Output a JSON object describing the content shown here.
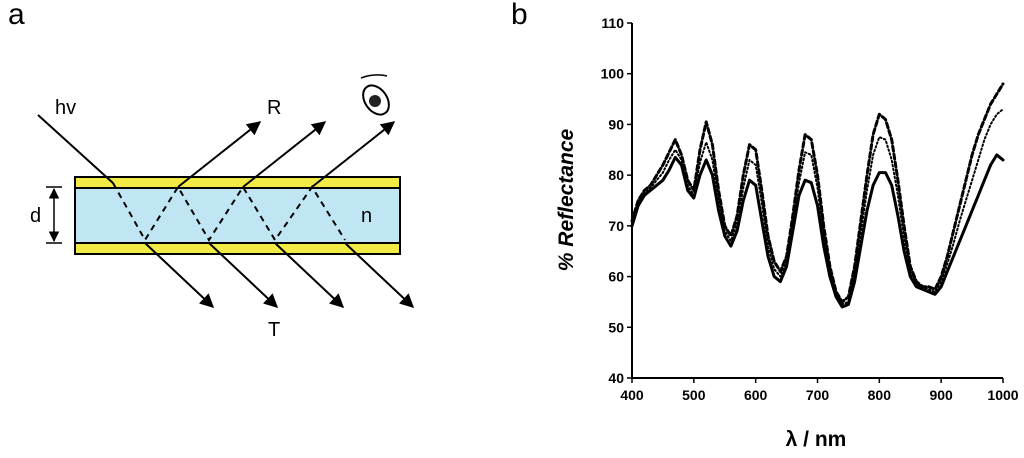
{
  "panels": {
    "a": {
      "label": "a",
      "texts": {
        "incident": "hv",
        "reflected": "R",
        "transmitted": "T",
        "thickness": "d",
        "index": "n"
      },
      "colors": {
        "layer": "#f2ea45",
        "core": "#bfe6f2"
      }
    },
    "b": {
      "label": "b"
    }
  },
  "chart_data": {
    "type": "line",
    "xlabel": "λ / nm",
    "ylabel": "% Reflectance",
    "xlim": [
      400,
      1000
    ],
    "ylim": [
      40,
      110
    ],
    "xticks": [
      400,
      500,
      600,
      700,
      800,
      900,
      1000
    ],
    "yticks": [
      40,
      50,
      60,
      70,
      80,
      90,
      100,
      110
    ],
    "grid": false,
    "series": [
      {
        "style": "solid",
        "x": [
          400,
          410,
          420,
          430,
          440,
          450,
          460,
          470,
          480,
          490,
          500,
          510,
          520,
          530,
          540,
          550,
          560,
          570,
          580,
          590,
          600,
          610,
          620,
          630,
          640,
          650,
          660,
          670,
          680,
          690,
          700,
          710,
          720,
          730,
          740,
          750,
          760,
          770,
          780,
          790,
          800,
          810,
          820,
          830,
          840,
          850,
          860,
          870,
          880,
          890,
          900,
          910,
          920,
          930,
          940,
          950,
          960,
          970,
          980,
          990,
          1000
        ],
        "y": [
          70,
          74,
          76,
          77,
          78,
          79,
          81,
          83.5,
          82,
          77,
          75.5,
          80,
          83,
          80,
          73,
          68,
          66,
          69,
          75,
          79,
          78,
          71,
          64,
          60,
          59,
          62,
          69,
          76,
          79,
          78.5,
          74,
          66,
          60,
          56,
          54,
          54.5,
          59,
          66,
          73,
          78,
          80.5,
          80.5,
          78,
          72,
          65,
          60,
          58,
          57.5,
          57,
          56.5,
          58,
          61,
          64,
          67,
          70,
          73,
          76,
          79,
          82,
          84,
          83
        ]
      },
      {
        "style": "dashed",
        "x": [
          400,
          410,
          420,
          430,
          440,
          450,
          460,
          470,
          480,
          490,
          500,
          510,
          520,
          530,
          540,
          550,
          560,
          570,
          580,
          590,
          600,
          610,
          620,
          630,
          640,
          650,
          660,
          670,
          680,
          690,
          700,
          710,
          720,
          730,
          740,
          750,
          760,
          770,
          780,
          790,
          800,
          810,
          820,
          830,
          840,
          850,
          860,
          870,
          880,
          890,
          900,
          910,
          920,
          930,
          940,
          950,
          960,
          970,
          980,
          990,
          1000
        ],
        "y": [
          71,
          75,
          77,
          78,
          80,
          82,
          84.5,
          87,
          84,
          79,
          77,
          85,
          90.5,
          86,
          77,
          70,
          68,
          72,
          80,
          86,
          85,
          77,
          68,
          63,
          61,
          64,
          72,
          81,
          88,
          87,
          80,
          70,
          62,
          57,
          55,
          56,
          62,
          71,
          80,
          88,
          92,
          91,
          87,
          79,
          70,
          62,
          59,
          58,
          58,
          57.5,
          60,
          64,
          69,
          74,
          79,
          84,
          88,
          91,
          94,
          96,
          98
        ]
      },
      {
        "style": "dotted",
        "x": [
          400,
          410,
          420,
          430,
          440,
          450,
          460,
          470,
          480,
          490,
          500,
          510,
          520,
          530,
          540,
          550,
          560,
          570,
          580,
          590,
          600,
          610,
          620,
          630,
          640,
          650,
          660,
          670,
          680,
          690,
          700,
          710,
          720,
          730,
          740,
          750,
          760,
          770,
          780,
          790,
          800,
          810,
          820,
          830,
          840,
          850,
          860,
          870,
          880,
          890,
          900,
          910,
          920,
          930,
          940,
          950,
          960,
          970,
          980,
          990,
          1000
        ],
        "y": [
          70.5,
          74.5,
          76.5,
          77.5,
          79,
          80.5,
          83,
          85,
          83,
          78,
          76,
          82.5,
          86.5,
          83,
          75,
          69,
          67,
          70.5,
          77.5,
          83,
          82,
          74.5,
          66,
          61.5,
          60,
          63,
          70.5,
          78.5,
          84.5,
          84,
          77.5,
          68,
          61,
          56.5,
          54.5,
          55,
          60.5,
          68.5,
          77,
          84,
          87.5,
          87,
          83,
          76,
          67.5,
          61,
          58.5,
          58,
          57.5,
          57,
          59,
          62.5,
          66.5,
          71,
          75,
          79,
          83,
          87,
          90,
          92,
          93
        ]
      }
    ]
  }
}
